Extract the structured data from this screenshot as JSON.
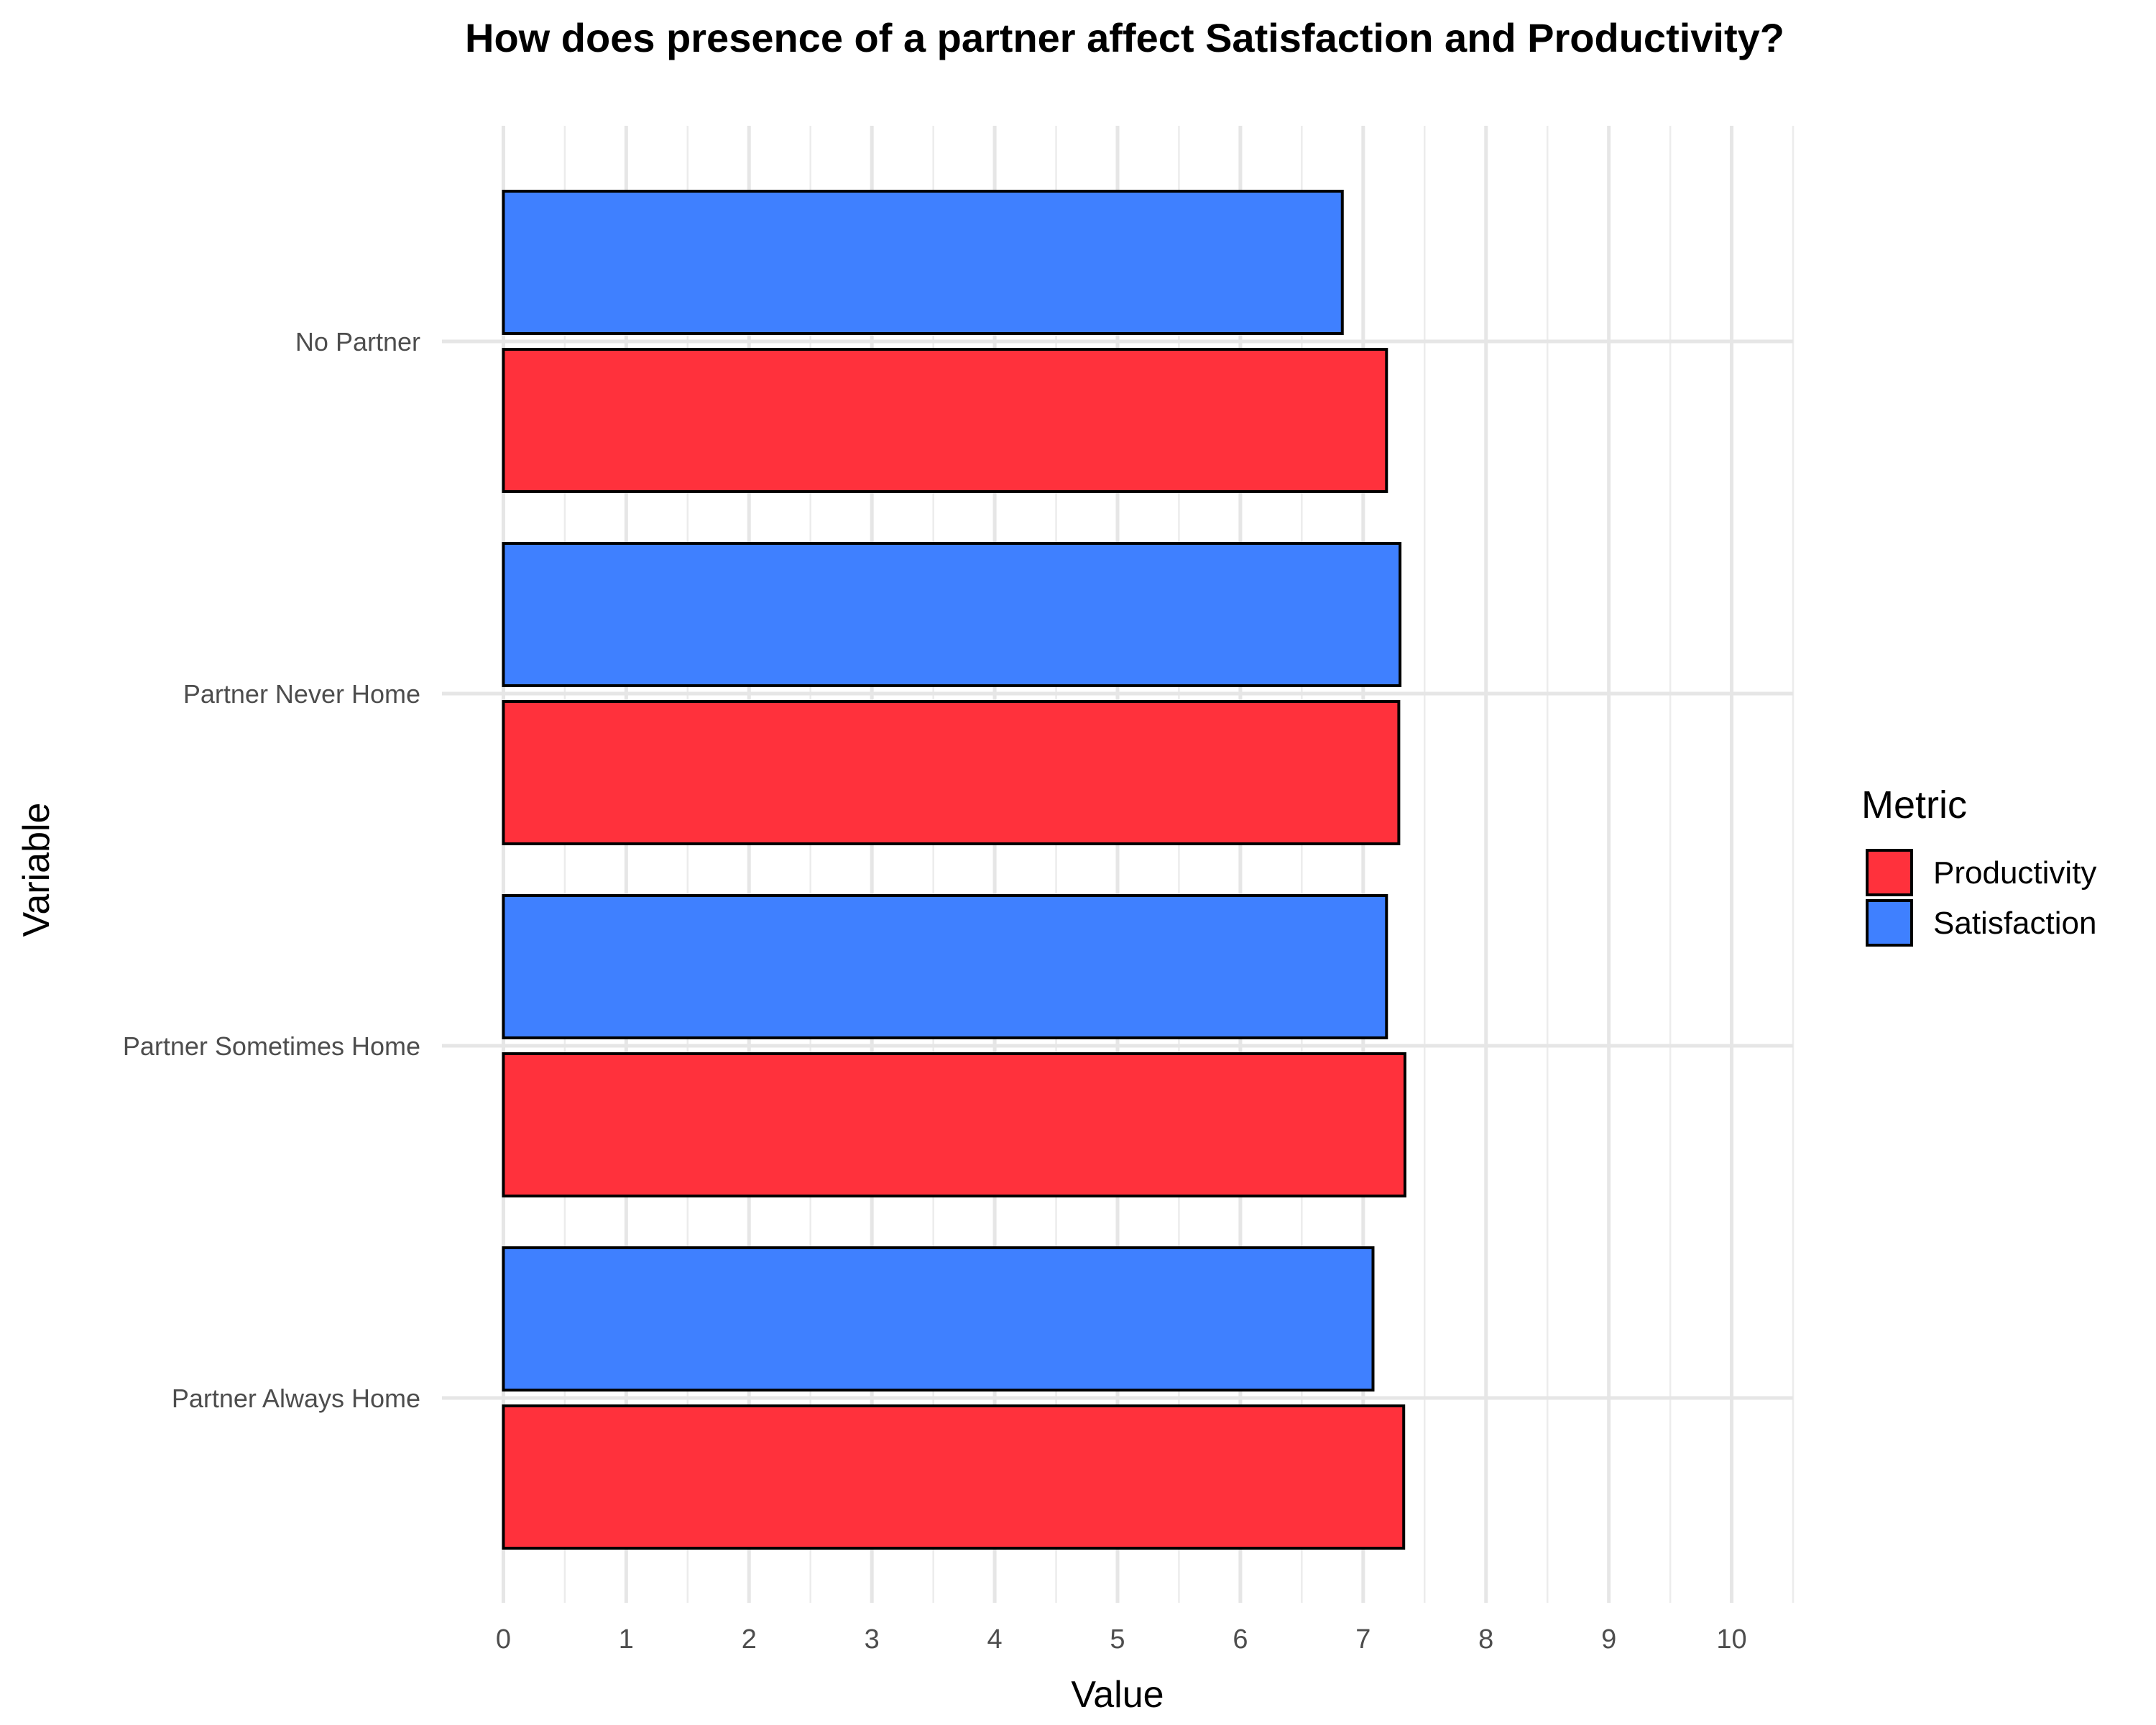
{
  "chart_data": {
    "type": "bar",
    "orientation": "horizontal",
    "title": "How does presence of a partner affect Satisfaction and Productivity?",
    "xlabel": "Value",
    "ylabel": "Variable",
    "categories": [
      "No Partner",
      "Partner Never Home",
      "Partner Sometimes Home",
      "Partner Always Home"
    ],
    "series": [
      {
        "name": "Satisfaction",
        "color": "#3f80ff",
        "values": [
          6.83,
          7.3,
          7.19,
          7.08
        ]
      },
      {
        "name": "Productivity",
        "color": "#ff313c",
        "values": [
          7.19,
          7.29,
          7.34,
          7.33
        ]
      }
    ],
    "xlim": [
      -0.5,
      10.5
    ],
    "xticks": [
      "0",
      "1",
      "2",
      "3",
      "4",
      "5",
      "6",
      "7",
      "8",
      "9",
      "10"
    ],
    "grid": true,
    "legend": {
      "title": "Metric",
      "position": "right",
      "entries": [
        {
          "label": "Productivity",
          "color": "#ff313c"
        },
        {
          "label": "Satisfaction",
          "color": "#3f80ff"
        }
      ]
    }
  }
}
